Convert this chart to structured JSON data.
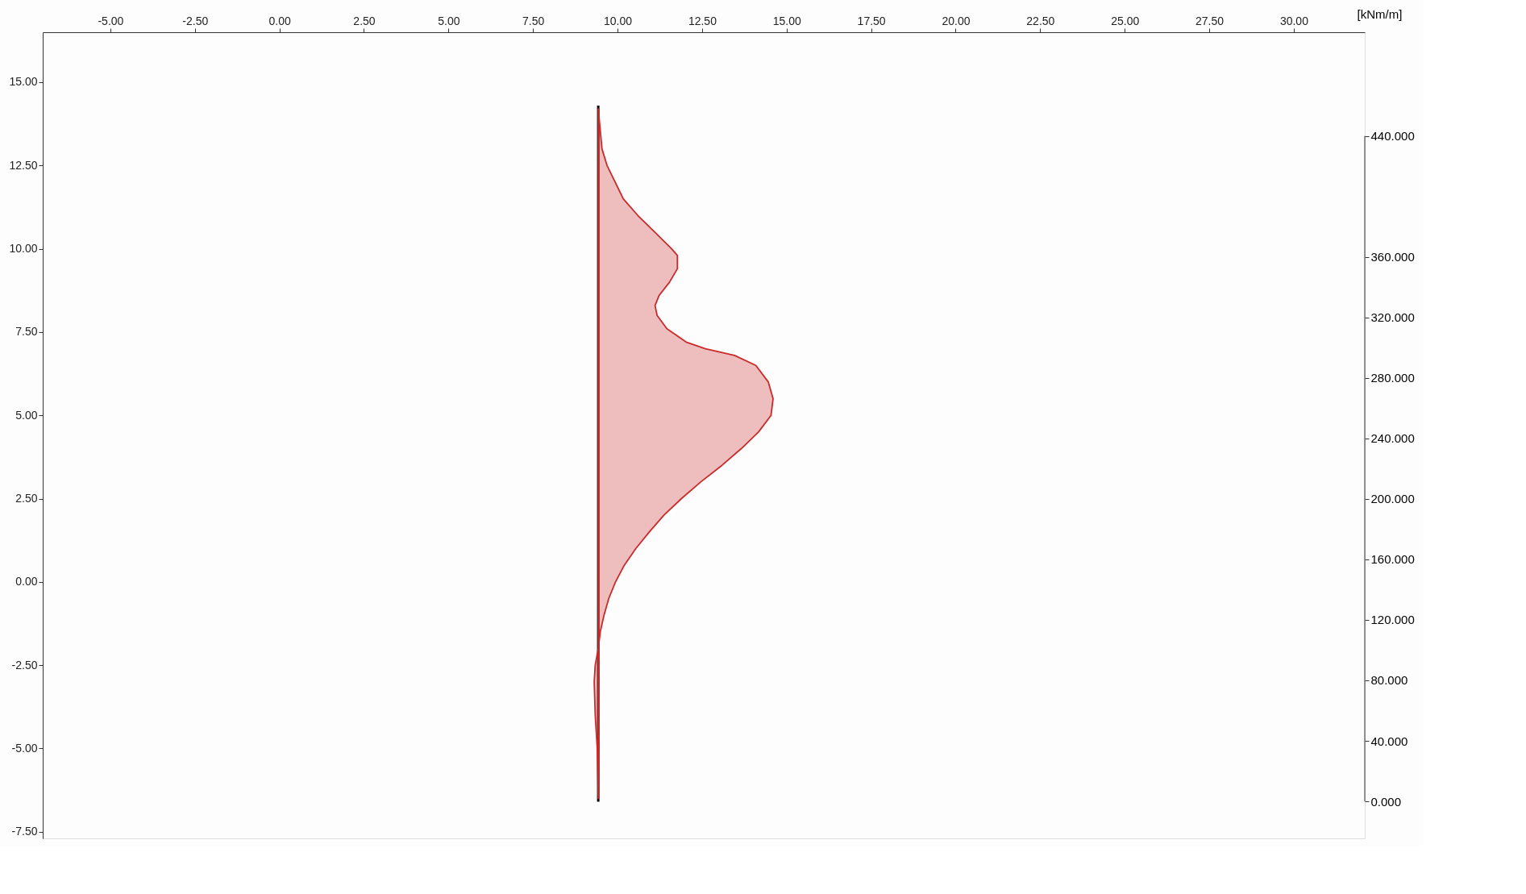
{
  "chart_data": {
    "type": "line",
    "xlim": [
      -7.0,
      32.1
    ],
    "ylim": [
      -7.7,
      16.5
    ],
    "xticks": [
      {
        "value": -5,
        "label": "-5.00"
      },
      {
        "value": -2.5,
        "label": "-2.50"
      },
      {
        "value": 0,
        "label": "0.00"
      },
      {
        "value": 2.5,
        "label": "2.50"
      },
      {
        "value": 5,
        "label": "5.00"
      },
      {
        "value": 7.5,
        "label": "7.50"
      },
      {
        "value": 10,
        "label": "10.00"
      },
      {
        "value": 12.5,
        "label": "12.50"
      },
      {
        "value": 15,
        "label": "15.00"
      },
      {
        "value": 17.5,
        "label": "17.50"
      },
      {
        "value": 20,
        "label": "20.00"
      },
      {
        "value": 22.5,
        "label": "22.50"
      },
      {
        "value": 25,
        "label": "25.00"
      },
      {
        "value": 27.5,
        "label": "27.50"
      },
      {
        "value": 30,
        "label": "30.00"
      }
    ],
    "yticks": [
      {
        "value": -7.5,
        "label": "-7.50"
      },
      {
        "value": -5,
        "label": "-5.00"
      },
      {
        "value": -2.5,
        "label": "-2.50"
      },
      {
        "value": 0,
        "label": "0.00"
      },
      {
        "value": 2.5,
        "label": "2.50"
      },
      {
        "value": 5,
        "label": "5.00"
      },
      {
        "value": 7.5,
        "label": "7.50"
      },
      {
        "value": 10,
        "label": "10.00"
      },
      {
        "value": 12.5,
        "label": "12.50"
      },
      {
        "value": 15,
        "label": "15.00"
      }
    ],
    "y2label": "[kNm/m]",
    "y2lim": [
      -24.5,
      508.6
    ],
    "y2ticks": [
      {
        "value": 0,
        "label": "0.000"
      },
      {
        "value": 40,
        "label": "40.000"
      },
      {
        "value": 80,
        "label": "80.000"
      },
      {
        "value": 120,
        "label": "120.000"
      },
      {
        "value": 160,
        "label": "160.000"
      },
      {
        "value": 200,
        "label": "200.000"
      },
      {
        "value": 240,
        "label": "240.000"
      },
      {
        "value": 280,
        "label": "280.000"
      },
      {
        "value": 320,
        "label": "320.000"
      },
      {
        "value": 360,
        "label": "360.000"
      },
      {
        "value": 440,
        "label": "440.000"
      }
    ],
    "grid": false,
    "marker": "none",
    "series": [
      {
        "type": "line",
        "color": "#000000",
        "x": [
          9.43,
          9.43
        ],
        "values": [
          14.3,
          -6.6
        ]
      },
      {
        "type": "area",
        "color": "#cc2a2a",
        "x": [
          9.43,
          9.54,
          9.69,
          10.17,
          10.6,
          11.1,
          11.6,
          11.77,
          11.77,
          11.54,
          11.23,
          11.11,
          11.17,
          11.46,
          12.03,
          12.6,
          13.46,
          14.09,
          14.46,
          14.6,
          14.54,
          14.17,
          13.66,
          13.09,
          12.46,
          11.89,
          11.37,
          10.94,
          10.54,
          10.2,
          9.94,
          9.74,
          9.6,
          9.49,
          9.43,
          9.34,
          9.31,
          9.34,
          9.4,
          9.43
        ],
        "values": [
          14.2,
          13.0,
          12.5,
          11.5,
          11.0,
          10.5,
          10.0,
          9.8,
          9.4,
          9.0,
          8.6,
          8.3,
          8.0,
          7.6,
          7.2,
          7.0,
          6.8,
          6.5,
          6.0,
          5.5,
          5.0,
          4.5,
          4.0,
          3.5,
          3.0,
          2.5,
          2.0,
          1.5,
          1.0,
          0.5,
          0.0,
          -0.5,
          -1.0,
          -1.5,
          -2.0,
          -2.5,
          -3.0,
          -4.0,
          -5.0,
          -6.5
        ]
      }
    ]
  }
}
